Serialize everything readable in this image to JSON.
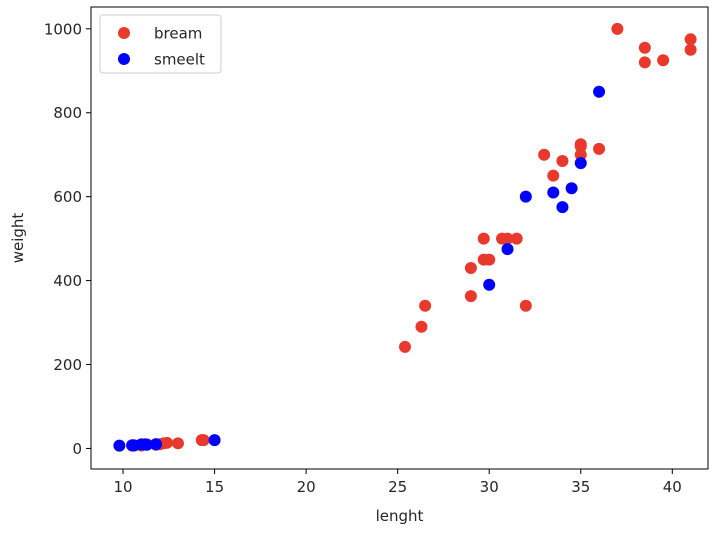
{
  "chart_data": {
    "type": "scatter",
    "xlabel": "lenght",
    "ylabel": "weight",
    "xlim": [
      8.25,
      41.95
    ],
    "ylim": [
      -49,
      1052
    ],
    "xticks": [
      10,
      15,
      20,
      25,
      30,
      35,
      40
    ],
    "yticks": [
      0,
      200,
      400,
      600,
      800,
      1000
    ],
    "grid": false,
    "legend_position": "top-left",
    "series": [
      {
        "name": "bream",
        "color": "#e8392c",
        "points": [
          [
            25.4,
            242
          ],
          [
            26.3,
            290
          ],
          [
            26.5,
            340
          ],
          [
            29.0,
            363
          ],
          [
            29.0,
            430
          ],
          [
            29.7,
            450
          ],
          [
            29.7,
            500
          ],
          [
            30.0,
            450
          ],
          [
            30.7,
            500
          ],
          [
            31.0,
            500
          ],
          [
            31.5,
            500
          ],
          [
            32.0,
            340
          ],
          [
            33.0,
            700
          ],
          [
            33.5,
            650
          ],
          [
            34.0,
            685
          ],
          [
            35.0,
            700
          ],
          [
            35.0,
            725
          ],
          [
            35.0,
            720
          ],
          [
            36.0,
            714
          ],
          [
            37.0,
            1000
          ],
          [
            38.5,
            920
          ],
          [
            38.5,
            955
          ],
          [
            39.5,
            925
          ],
          [
            41.0,
            975
          ],
          [
            41.0,
            950
          ],
          [
            10.5,
            6.7
          ],
          [
            10.6,
            7.5
          ],
          [
            11.0,
            7.0
          ],
          [
            11.2,
            9.7
          ],
          [
            11.3,
            9.8
          ],
          [
            11.8,
            8.7
          ],
          [
            12.0,
            10.0
          ],
          [
            12.2,
            12.2
          ],
          [
            12.4,
            13.4
          ],
          [
            13.0,
            12.2
          ],
          [
            14.3,
            19.7
          ],
          [
            14.4,
            19.9
          ]
        ]
      },
      {
        "name": "smeelt",
        "color": "#0000ff",
        "points": [
          [
            9.8,
            6.7
          ],
          [
            10.5,
            7.5
          ],
          [
            10.6,
            7.0
          ],
          [
            11.0,
            9.7
          ],
          [
            11.2,
            9.8
          ],
          [
            11.3,
            8.7
          ],
          [
            11.8,
            10.0
          ],
          [
            11.8,
            9.9
          ],
          [
            15.0,
            19.9
          ],
          [
            30.0,
            390
          ],
          [
            31.0,
            475
          ],
          [
            32.0,
            600
          ],
          [
            33.5,
            610
          ],
          [
            34.0,
            575
          ],
          [
            34.5,
            620
          ],
          [
            35.0,
            680
          ],
          [
            36.0,
            850
          ]
        ]
      }
    ]
  }
}
